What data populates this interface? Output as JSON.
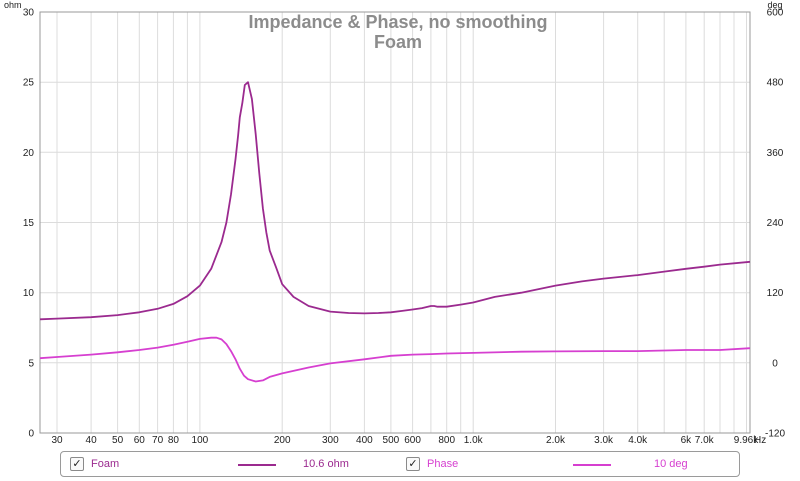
{
  "chart_data": {
    "type": "line",
    "title": "Impedance & Phase, no smoothing",
    "subtitle": "Foam",
    "x_unit": "Hz",
    "xscale": "log",
    "xlim": [
      26,
      10300
    ],
    "x_ticks": [
      30,
      40,
      50,
      60,
      70,
      80,
      100,
      200,
      300,
      400,
      500,
      600,
      800,
      1000,
      2000,
      3000,
      4000,
      6000,
      7000,
      9960
    ],
    "x_tick_labels": [
      "30",
      "40",
      "50",
      "60",
      "70",
      "80",
      "100",
      "200",
      "300",
      "400",
      "500",
      "600",
      "800",
      "1.0k",
      "2.0k",
      "3.0k",
      "4.0k",
      "6k",
      "7.0k",
      "9.96k"
    ],
    "y_left": {
      "label": "ohm",
      "lim": [
        0,
        30
      ],
      "ticks": [
        0,
        5,
        10,
        15,
        20,
        25,
        30
      ]
    },
    "y_right": {
      "label": "deg",
      "lim": [
        -120,
        600
      ],
      "ticks": [
        -120,
        0,
        120,
        240,
        360,
        480,
        600
      ]
    },
    "grid": true,
    "legend_position": "bottom",
    "series": [
      {
        "name": "Foam",
        "axis": "left",
        "color": "#9b2a8f",
        "x": [
          26,
          30,
          40,
          50,
          60,
          70,
          80,
          90,
          100,
          110,
          120,
          125,
          130,
          135,
          138,
          140,
          143,
          146,
          150,
          155,
          160,
          165,
          170,
          175,
          180,
          190,
          200,
          220,
          250,
          280,
          300,
          350,
          400,
          450,
          500,
          550,
          600,
          650,
          700,
          720,
          740,
          800,
          900,
          1000,
          1200,
          1500,
          2000,
          2500,
          3000,
          4000,
          5000,
          6000,
          7000,
          8000,
          10300
        ],
        "y": [
          8.1,
          8.15,
          8.25,
          8.4,
          8.6,
          8.85,
          9.2,
          9.75,
          10.5,
          11.7,
          13.6,
          15.0,
          17.0,
          19.5,
          21.2,
          22.5,
          23.5,
          24.8,
          25.0,
          23.8,
          21.3,
          18.5,
          16.0,
          14.3,
          13.0,
          11.8,
          10.6,
          9.7,
          9.05,
          8.8,
          8.65,
          8.55,
          8.52,
          8.55,
          8.6,
          8.7,
          8.8,
          8.9,
          9.05,
          9.05,
          9.0,
          9.0,
          9.15,
          9.3,
          9.7,
          10.0,
          10.5,
          10.8,
          11.0,
          11.25,
          11.5,
          11.7,
          11.85,
          12.0,
          12.2
        ]
      },
      {
        "name": "Phase",
        "axis": "right",
        "color": "#d63fd0",
        "x": [
          26,
          30,
          40,
          50,
          60,
          70,
          80,
          90,
          100,
          110,
          115,
          120,
          125,
          130,
          135,
          140,
          145,
          150,
          160,
          170,
          180,
          200,
          250,
          300,
          400,
          500,
          600,
          700,
          800,
          1000,
          1500,
          2000,
          3000,
          4000,
          6000,
          8000,
          10300
        ],
        "y": [
          8,
          10,
          14,
          18,
          22,
          26,
          31,
          36,
          41,
          43,
          43,
          40,
          32,
          20,
          6,
          -10,
          -22,
          -28,
          -32,
          -30,
          -24,
          -18,
          -8,
          -1,
          6,
          12,
          14,
          15,
          16,
          17,
          19,
          19.5,
          20,
          20,
          22,
          22,
          25
        ]
      }
    ],
    "legend": [
      {
        "check": "✓",
        "name": "Foam",
        "value": "10.6 ohm",
        "color": "#9b2a8f"
      },
      {
        "check": "✓",
        "name": "Phase",
        "value": "10 deg",
        "color": "#d63fd0"
      }
    ]
  }
}
